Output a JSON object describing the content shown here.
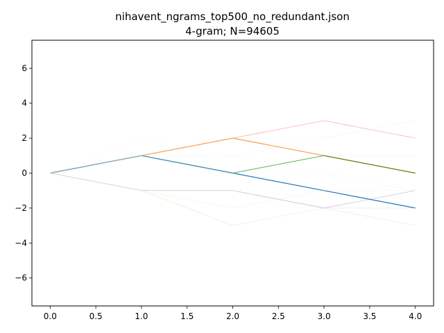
{
  "chart_data": {
    "type": "line",
    "title": "nihavent_ngrams_top500_no_redundant.json",
    "subtitle": "4-gram; N=94605",
    "xlabel": "",
    "ylabel": "",
    "xlim": [
      -0.2,
      4.2
    ],
    "ylim": [
      -7.6,
      7.6
    ],
    "x_ticks": [
      0.0,
      0.5,
      1.0,
      1.5,
      2.0,
      2.5,
      3.0,
      3.5,
      4.0
    ],
    "x_tick_labels": [
      "0.0",
      "0.5",
      "1.0",
      "1.5",
      "2.0",
      "2.5",
      "3.0",
      "3.5",
      "4.0"
    ],
    "y_ticks": [
      -6,
      -4,
      -2,
      0,
      2,
      4,
      6
    ],
    "y_tick_labels": [
      "−6",
      "−4",
      "−2",
      "0",
      "2",
      "4",
      "6"
    ],
    "grid": false,
    "x": [
      0,
      1,
      2,
      3,
      4
    ],
    "series": [
      {
        "values": [
          0,
          1,
          2,
          3,
          2
        ],
        "color": "#e8735a",
        "opacity": 0.55,
        "width": 0.8
      },
      {
        "values": [
          0,
          1,
          2,
          1,
          0
        ],
        "color": "#ff7f0e",
        "opacity": 0.9,
        "width": 1.2
      },
      {
        "values": [
          0,
          1,
          0,
          1,
          0
        ],
        "color": "#2ca02c",
        "opacity": 0.8,
        "width": 1.0
      },
      {
        "values": [
          0,
          1,
          0,
          -1,
          -2
        ],
        "color": "#1f77b4",
        "opacity": 1.0,
        "width": 1.2
      },
      {
        "values": [
          0,
          -1,
          -1,
          -2,
          -1
        ],
        "color": "#8c6d99",
        "opacity": 0.45,
        "width": 0.7
      },
      {
        "values": [
          0,
          -1,
          -1,
          -2,
          -2
        ],
        "color": "#a0b4c8",
        "opacity": 0.3,
        "width": 0.6
      },
      {
        "values": [
          0,
          -1,
          -3,
          -2,
          -3
        ],
        "color": "#f4c9a8",
        "opacity": 0.55,
        "width": 0.6
      },
      {
        "values": [
          0,
          -1,
          -2,
          -1,
          -1
        ],
        "color": "#f6e0a0",
        "opacity": 0.35,
        "width": 0.6
      },
      {
        "values": [
          0,
          1,
          2,
          1,
          1
        ],
        "color": "#dcdcdc",
        "opacity": 0.4,
        "width": 0.6
      },
      {
        "values": [
          0,
          1,
          1,
          2,
          3
        ],
        "color": "#e8e8e8",
        "opacity": 0.35,
        "width": 0.6
      },
      {
        "values": [
          0,
          1,
          2,
          2,
          3
        ],
        "color": "#eeeeee",
        "opacity": 0.3,
        "width": 0.5
      },
      {
        "values": [
          0,
          2,
          1,
          0,
          -1
        ],
        "color": "#f0f0f0",
        "opacity": 0.3,
        "width": 0.5
      },
      {
        "values": [
          0,
          1,
          0,
          0,
          -1
        ],
        "color": "#ececec",
        "opacity": 0.3,
        "width": 0.5
      }
    ],
    "dominant_overlay": {
      "values": [
        0,
        1,
        2,
        1,
        0
      ],
      "color": "#6b7d1a",
      "opacity": 1.0,
      "width": 1.1,
      "x_from": 3
    }
  }
}
